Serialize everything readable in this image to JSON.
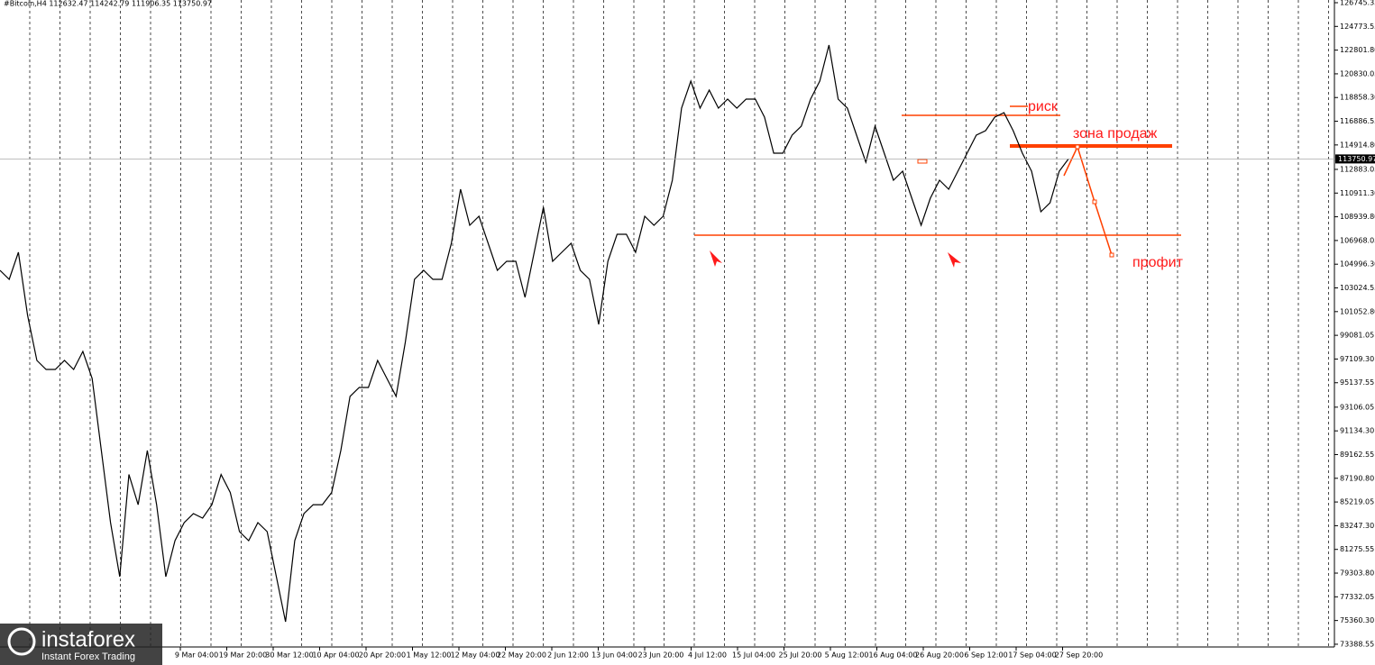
{
  "chart_data": {
    "type": "line",
    "title": "#Bitcoin,H4  112632.47 114242.79 111906.35 113750.97",
    "xticks": [
      "9 Mar 04:00",
      "19 Mar 20:00",
      "30 Mar 12:00",
      "10 Apr 04:00",
      "20 Apr 20:00",
      "1 May 12:00",
      "12 May 04:00",
      "22 May 20:00",
      "2 Jun 12:00",
      "13 Jun 04:00",
      "23 Jun 20:00",
      "4 Jul 12:00",
      "15 Jul 04:00",
      "25 Jul 20:00",
      "5 Aug 12:00",
      "16 Aug 04:00",
      "26 Aug 20:00",
      "6 Sep 12:00",
      "17 Sep 04:00",
      "27 Sep 20:00"
    ],
    "ylim": [
      73160,
      126970
    ],
    "yticks": [
      126745.35,
      124773.55,
      {
        "value": 122801.8,
        "label": "122801.80"
      },
      120830.05,
      {
        "value": 118858.3,
        "label": "118858.30"
      },
      116886.55,
      {
        "value": 114914.8,
        "label": "114914.80"
      },
      112883.05,
      {
        "value": 110911.3,
        "label": "110911.30"
      },
      {
        "value": 108939.8,
        "label": "108939.80"
      },
      106968.05,
      {
        "value": 104996.3,
        "label": "104996.30"
      },
      103024.55,
      {
        "value": 101052.8,
        "label": "101052.80"
      },
      99081.05,
      {
        "value": 97109.3,
        "label": "97109.30"
      },
      95137.55,
      93106.05,
      {
        "value": 91134.3,
        "label": "91134.30"
      },
      89162.55,
      {
        "value": 87190.8,
        "label": "87190.80"
      },
      85219.05,
      {
        "value": 83247.3,
        "label": "83247.30"
      },
      81275.55,
      {
        "value": 79303.8,
        "label": "79303.80"
      },
      77332.05,
      {
        "value": 75360.3,
        "label": "75360.30"
      },
      73388.55
    ],
    "last_price": 113750.97,
    "series": [
      {
        "name": "#Bitcoin",
        "color": "#000000",
        "values": [
          104488,
          103738,
          105987,
          100741,
          96994,
          96245,
          96245,
          96994,
          96245,
          97743,
          95495,
          89500,
          83505,
          79008,
          87501,
          84996,
          89500,
          84996,
          79008,
          82006,
          83505,
          84254,
          83879,
          84996,
          87501,
          86002,
          82755,
          82006,
          83505,
          82755,
          79008,
          75261,
          82006,
          84254,
          84996,
          84996,
          86002,
          89500,
          94004,
          94746,
          94746,
          96994,
          95495,
          94004,
          98493,
          103738,
          104488,
          103738,
          103738,
          106736,
          111233,
          108235,
          108984,
          106736,
          104488,
          105237,
          105237,
          102240,
          105987,
          109734,
          105237,
          105987,
          106736,
          104488,
          103738,
          99992,
          105237,
          107486,
          107486,
          105987,
          108984,
          108235,
          108984,
          111982,
          117977,
          120225,
          117977,
          119476,
          117977,
          118727,
          117977,
          118727,
          118727,
          117228,
          114230,
          114230,
          115729,
          116478,
          118727,
          120225,
          123223,
          118727,
          117977,
          115729,
          113481,
          116478,
          114230,
          111982,
          112731,
          110483,
          108235,
          110483,
          111982,
          111233,
          112731,
          114230,
          115729,
          116104,
          117228,
          117603,
          116104,
          114230,
          112731,
          109359,
          110109,
          112731,
          113751
        ]
      }
    ],
    "annotations": [
      "риск",
      "зона продаж",
      "профит"
    ],
    "logo": {
      "name": "instaforex",
      "tagline": "Instant Forex Trading"
    }
  }
}
